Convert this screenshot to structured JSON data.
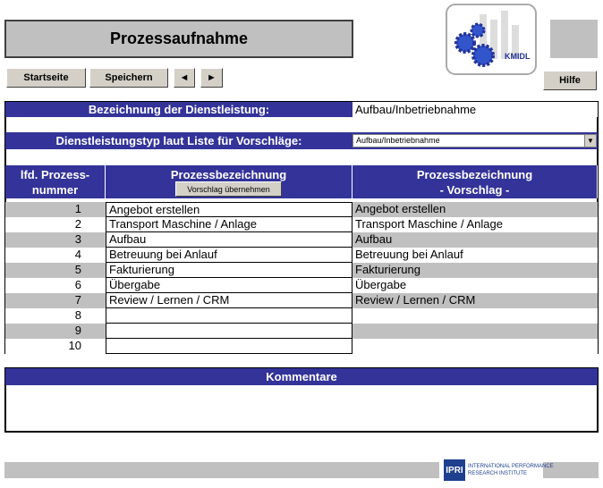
{
  "header": {
    "title": "Prozessaufnahme",
    "logo_text": "KMIDL"
  },
  "toolbar": {
    "buttons": [
      "Startseite",
      "Speichern",
      "◄",
      "►"
    ],
    "help": "Hilfe"
  },
  "form": {
    "name_label": "Bezeichnung der Dienstleistung:",
    "name_value": "Aufbau/Inbetriebnahme",
    "type_label": "Dienstleistungstyp laut Liste für Vorschläge:",
    "type_value": "Aufbau/Inbetriebnahme"
  },
  "table": {
    "columns": [
      [
        "lfd. Prozess-",
        "nummer"
      ],
      [
        "Prozessbezeichnung"
      ],
      [
        "Prozessbezeichnung",
        "- Vorschlag -"
      ]
    ],
    "apply_button": "Vorschlag übernehmen",
    "rows": [
      {
        "nr": 1,
        "name": "Angebot erstellen",
        "suggestion": "Angebot erstellen"
      },
      {
        "nr": 2,
        "name": "Transport Maschine / Anlage",
        "suggestion": "Transport Maschine / Anlage"
      },
      {
        "nr": 3,
        "name": "Aufbau",
        "suggestion": "Aufbau"
      },
      {
        "nr": 4,
        "name": "Betreuung bei Anlauf",
        "suggestion": "Betreuung bei Anlauf"
      },
      {
        "nr": 5,
        "name": "Fakturierung",
        "suggestion": "Fakturierung"
      },
      {
        "nr": 6,
        "name": "Übergabe",
        "suggestion": "Übergabe"
      },
      {
        "nr": 7,
        "name": "Review / Lernen / CRM",
        "suggestion": "Review / Lernen / CRM"
      },
      {
        "nr": 8
      },
      {
        "nr": 9
      },
      {
        "nr": 10
      }
    ]
  },
  "comments": {
    "title": "Kommentare"
  },
  "footer": {
    "logo": "IPRI",
    "institute": [
      "INTERNATIONAL PERFORMANCE",
      "RESEARCH INSTITUTE"
    ]
  }
}
